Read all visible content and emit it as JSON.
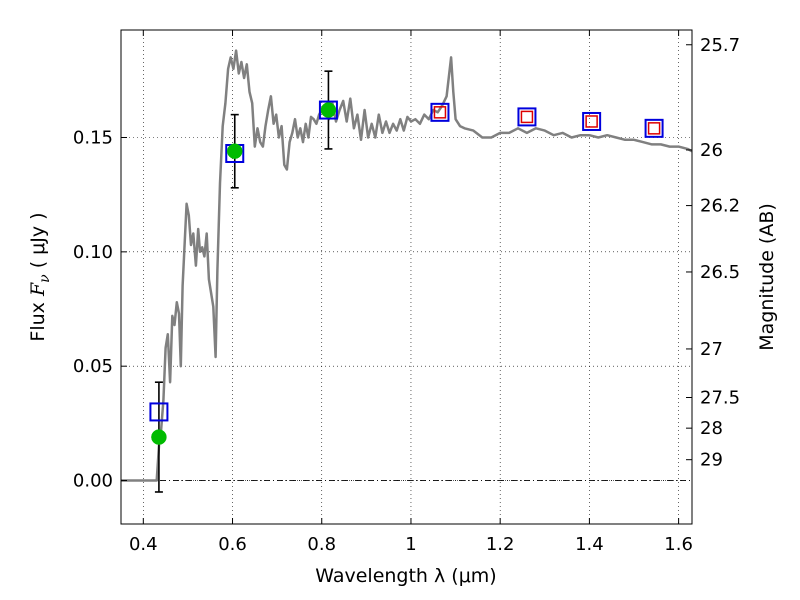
{
  "chart_data": {
    "type": "line",
    "title": "",
    "xlabel": "Wavelength  λ (μm)",
    "ylabel_prefix": "Flux  ",
    "ylabel_symbol": "F",
    "ylabel_sub": "ν",
    "ylabel_suffix": "  ( μJy )",
    "y2label": "Magnitude (AB)",
    "xlim": [
      0.35,
      1.63
    ],
    "ylim": [
      -0.019,
      0.197
    ],
    "grid": true,
    "x_ticks": [
      0.4,
      0.6,
      0.8,
      1.0,
      1.2,
      1.4,
      1.6
    ],
    "x_tick_labels": [
      "0.4",
      "0.6",
      "0.8",
      "1",
      "1.2",
      "1.4",
      "1.6"
    ],
    "y_ticks": [
      0.0,
      0.05,
      0.1,
      0.15
    ],
    "y_tick_labels": [
      "0.00",
      "0.05",
      "0.10",
      "0.15"
    ],
    "mag_ticks": [
      25.7,
      26,
      26.2,
      26.5,
      27,
      27.5,
      28,
      29
    ],
    "mag_tick_labels": [
      "25.7",
      "26",
      "26.2",
      "26.5",
      "27",
      "27.5",
      "28",
      "29"
    ],
    "colors": {
      "spectrum": "#808080",
      "observed": "#00bb00",
      "model_box": "#0000dd",
      "model_inner": "#dd0000",
      "errorbar": "#000000"
    },
    "series": [
      {
        "kind": "spectrum",
        "points": [
          [
            0.35,
            0.0
          ],
          [
            0.4,
            0.0
          ],
          [
            0.43,
            0.0
          ],
          [
            0.432,
            0.006
          ],
          [
            0.436,
            0.018
          ],
          [
            0.44,
            0.022
          ],
          [
            0.445,
            0.035
          ],
          [
            0.45,
            0.058
          ],
          [
            0.455,
            0.064
          ],
          [
            0.46,
            0.043
          ],
          [
            0.465,
            0.072
          ],
          [
            0.47,
            0.068
          ],
          [
            0.475,
            0.078
          ],
          [
            0.48,
            0.073
          ],
          [
            0.484,
            0.05
          ],
          [
            0.488,
            0.085
          ],
          [
            0.493,
            0.105
          ],
          [
            0.497,
            0.121
          ],
          [
            0.502,
            0.116
          ],
          [
            0.507,
            0.103
          ],
          [
            0.512,
            0.108
          ],
          [
            0.518,
            0.094
          ],
          [
            0.523,
            0.11
          ],
          [
            0.527,
            0.1
          ],
          [
            0.532,
            0.102
          ],
          [
            0.537,
            0.098
          ],
          [
            0.542,
            0.108
          ],
          [
            0.547,
            0.088
          ],
          [
            0.552,
            0.082
          ],
          [
            0.557,
            0.076
          ],
          [
            0.562,
            0.054
          ],
          [
            0.566,
            0.092
          ],
          [
            0.572,
            0.13
          ],
          [
            0.578,
            0.155
          ],
          [
            0.584,
            0.165
          ],
          [
            0.59,
            0.18
          ],
          [
            0.596,
            0.185
          ],
          [
            0.602,
            0.18
          ],
          [
            0.608,
            0.188
          ],
          [
            0.614,
            0.178
          ],
          [
            0.62,
            0.183
          ],
          [
            0.626,
            0.176
          ],
          [
            0.632,
            0.182
          ],
          [
            0.638,
            0.17
          ],
          [
            0.644,
            0.165
          ],
          [
            0.65,
            0.146
          ],
          [
            0.656,
            0.154
          ],
          [
            0.662,
            0.148
          ],
          [
            0.668,
            0.146
          ],
          [
            0.674,
            0.155
          ],
          [
            0.68,
            0.162
          ],
          [
            0.686,
            0.168
          ],
          [
            0.692,
            0.156
          ],
          [
            0.698,
            0.16
          ],
          [
            0.704,
            0.15
          ],
          [
            0.71,
            0.155
          ],
          [
            0.716,
            0.138
          ],
          [
            0.722,
            0.136
          ],
          [
            0.728,
            0.148
          ],
          [
            0.734,
            0.152
          ],
          [
            0.74,
            0.158
          ],
          [
            0.746,
            0.15
          ],
          [
            0.752,
            0.154
          ],
          [
            0.758,
            0.148
          ],
          [
            0.764,
            0.156
          ],
          [
            0.77,
            0.15
          ],
          [
            0.776,
            0.159
          ],
          [
            0.782,
            0.158
          ],
          [
            0.788,
            0.156
          ],
          [
            0.794,
            0.16
          ],
          [
            0.8,
            0.162
          ],
          [
            0.808,
            0.163
          ],
          [
            0.816,
            0.158
          ],
          [
            0.824,
            0.165
          ],
          [
            0.832,
            0.157
          ],
          [
            0.84,
            0.162
          ],
          [
            0.848,
            0.166
          ],
          [
            0.856,
            0.157
          ],
          [
            0.864,
            0.167
          ],
          [
            0.872,
            0.154
          ],
          [
            0.88,
            0.16
          ],
          [
            0.888,
            0.149
          ],
          [
            0.896,
            0.162
          ],
          [
            0.904,
            0.15
          ],
          [
            0.912,
            0.156
          ],
          [
            0.92,
            0.15
          ],
          [
            0.928,
            0.16
          ],
          [
            0.936,
            0.152
          ],
          [
            0.944,
            0.157
          ],
          [
            0.952,
            0.152
          ],
          [
            0.96,
            0.156
          ],
          [
            0.968,
            0.153
          ],
          [
            0.976,
            0.158
          ],
          [
            0.984,
            0.153
          ],
          [
            0.992,
            0.159
          ],
          [
            1.0,
            0.157
          ],
          [
            1.01,
            0.158
          ],
          [
            1.02,
            0.156
          ],
          [
            1.03,
            0.16
          ],
          [
            1.04,
            0.158
          ],
          [
            1.05,
            0.162
          ],
          [
            1.06,
            0.161
          ],
          [
            1.07,
            0.164
          ],
          [
            1.08,
            0.168
          ],
          [
            1.09,
            0.185
          ],
          [
            1.095,
            0.17
          ],
          [
            1.1,
            0.158
          ],
          [
            1.11,
            0.155
          ],
          [
            1.12,
            0.154
          ],
          [
            1.14,
            0.153
          ],
          [
            1.16,
            0.15
          ],
          [
            1.18,
            0.15
          ],
          [
            1.2,
            0.152
          ],
          [
            1.22,
            0.152
          ],
          [
            1.24,
            0.154
          ],
          [
            1.26,
            0.152
          ],
          [
            1.28,
            0.154
          ],
          [
            1.3,
            0.153
          ],
          [
            1.32,
            0.151
          ],
          [
            1.34,
            0.152
          ],
          [
            1.36,
            0.15
          ],
          [
            1.38,
            0.151
          ],
          [
            1.4,
            0.151
          ],
          [
            1.42,
            0.15
          ],
          [
            1.44,
            0.151
          ],
          [
            1.46,
            0.15
          ],
          [
            1.48,
            0.149
          ],
          [
            1.5,
            0.149
          ],
          [
            1.52,
            0.148
          ],
          [
            1.54,
            0.147
          ],
          [
            1.56,
            0.147
          ],
          [
            1.58,
            0.146
          ],
          [
            1.6,
            0.146
          ],
          [
            1.62,
            0.145
          ],
          [
            1.63,
            0.144
          ]
        ]
      },
      {
        "kind": "observed",
        "points": [
          {
            "x": 0.435,
            "y": 0.019,
            "yerr": 0.024
          },
          {
            "x": 0.605,
            "y": 0.144,
            "yerr": 0.016
          },
          {
            "x": 0.815,
            "y": 0.162,
            "yerr": 0.017
          }
        ]
      },
      {
        "kind": "model",
        "points": [
          {
            "x": 0.435,
            "y": 0.03
          },
          {
            "x": 0.605,
            "y": 0.143
          },
          {
            "x": 0.815,
            "y": 0.162
          },
          {
            "x": 1.065,
            "y": 0.161
          },
          {
            "x": 1.26,
            "y": 0.159
          },
          {
            "x": 1.405,
            "y": 0.157
          },
          {
            "x": 1.545,
            "y": 0.154
          }
        ]
      }
    ]
  }
}
